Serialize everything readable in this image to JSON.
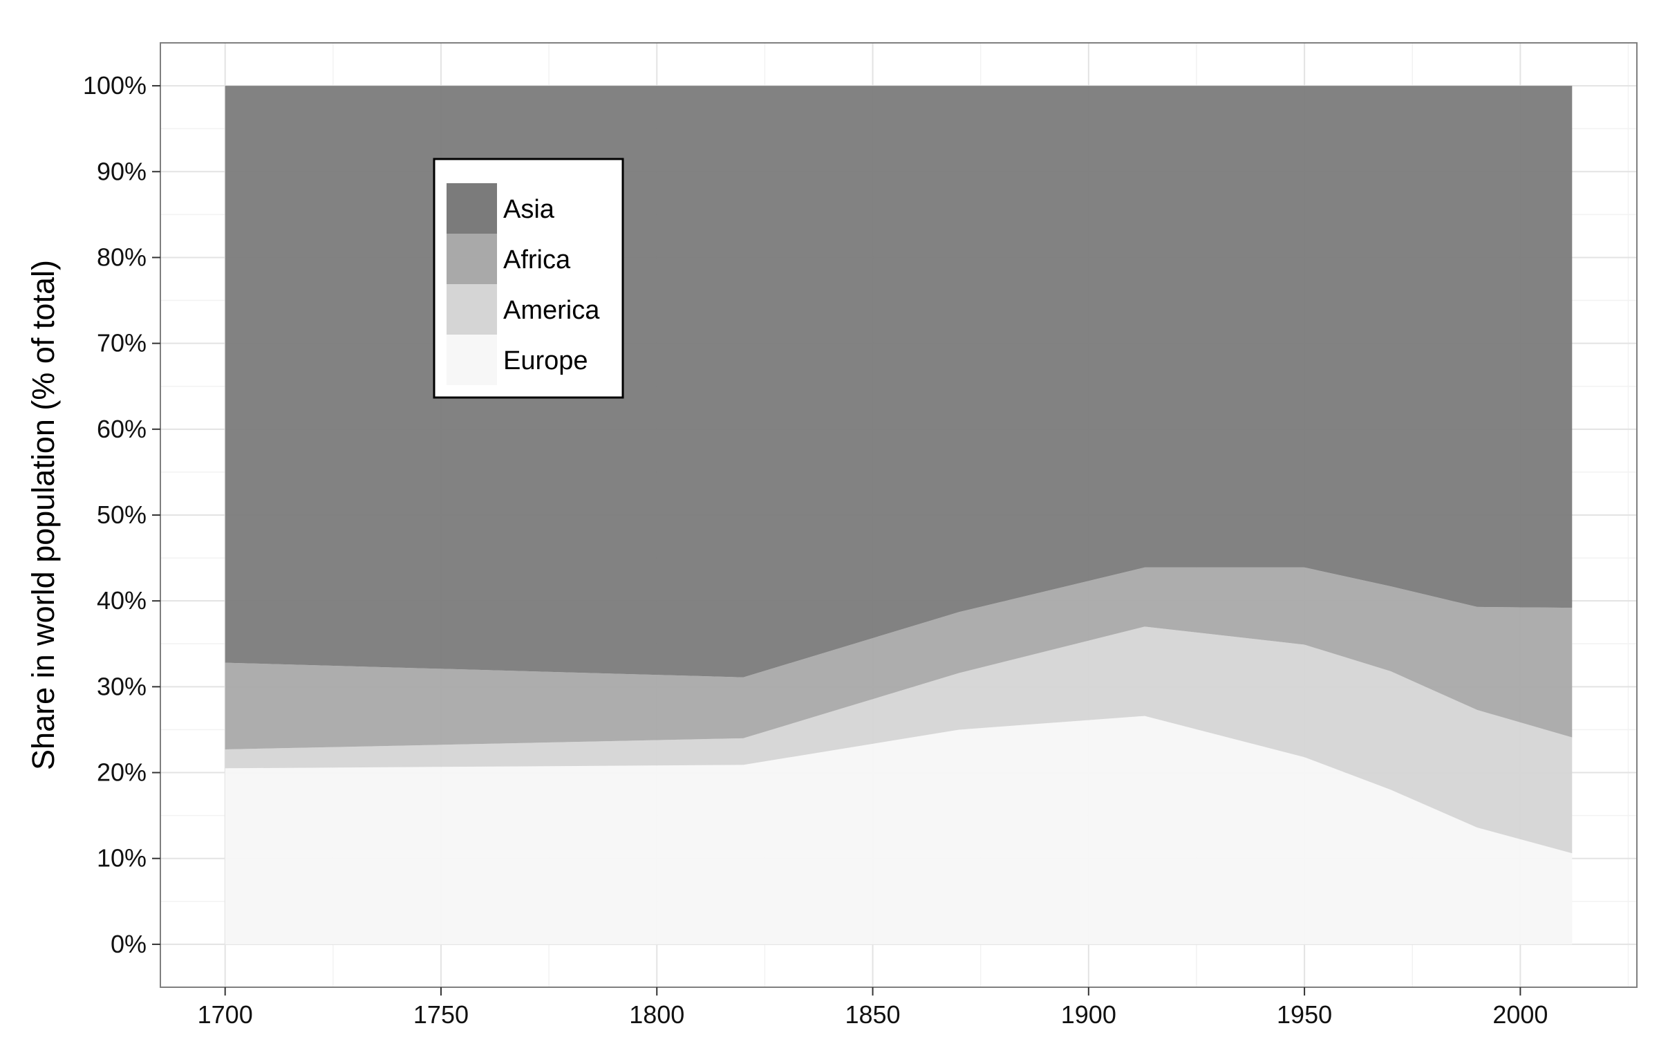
{
  "chart_data": {
    "type": "area",
    "stacked": true,
    "percent": true,
    "ylabel": "Share in world population (% of total)",
    "xlabel": "",
    "xlim": [
      1685,
      2027
    ],
    "ylim": [
      -5,
      105
    ],
    "x_ticks": [
      1700,
      1750,
      1800,
      1850,
      1900,
      1950,
      2000
    ],
    "y_ticks": [
      0,
      10,
      20,
      30,
      40,
      50,
      60,
      70,
      80,
      90,
      100
    ],
    "y_tick_labels": [
      "0%",
      "10%",
      "20%",
      "30%",
      "40%",
      "50%",
      "60%",
      "70%",
      "80%",
      "90%",
      "100%"
    ],
    "x_tick_labels": [
      "1700",
      "1750",
      "1800",
      "1850",
      "1900",
      "1950",
      "2000"
    ],
    "grid": true,
    "legend_position": "top-left",
    "x": [
      1700,
      1820,
      1870,
      1913,
      1950,
      1970,
      1990,
      2012
    ],
    "series": [
      {
        "name": "Europe",
        "color": "#f7f7f7",
        "values": [
          20.5,
          20.9,
          25.0,
          26.6,
          21.8,
          18.0,
          13.6,
          10.6
        ]
      },
      {
        "name": "America",
        "color": "#d5d5d5",
        "values": [
          2.2,
          3.1,
          6.6,
          10.4,
          13.1,
          13.8,
          13.7,
          13.5
        ]
      },
      {
        "name": "Africa",
        "color": "#a9a9a9",
        "values": [
          10.1,
          7.1,
          7.1,
          6.9,
          9.0,
          9.9,
          12.0,
          15.1
        ]
      },
      {
        "name": "Asia",
        "color": "#7b7b7b",
        "values": [
          67.2,
          68.9,
          61.3,
          56.1,
          56.1,
          58.3,
          60.7,
          60.8
        ]
      }
    ],
    "legend_order": [
      "Asia",
      "Africa",
      "America",
      "Europe"
    ]
  }
}
